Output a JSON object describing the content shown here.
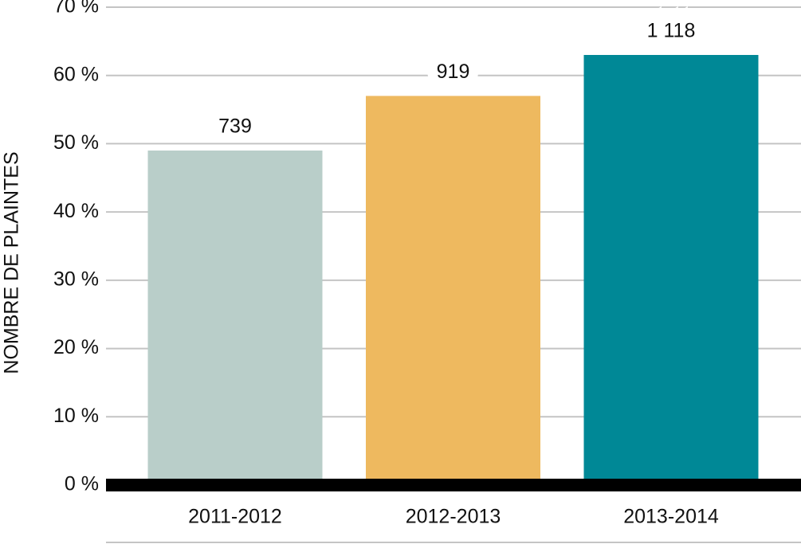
{
  "chart_data": {
    "type": "bar",
    "y_label": "NOMBRE DE PLAINTES",
    "categories": [
      "2011-2012",
      "2012-2013",
      "2013-2014"
    ],
    "values": [
      49,
      57,
      63
    ],
    "bar_labels": [
      "739",
      "919",
      "1 118"
    ],
    "colors": [
      "#b9cec9",
      "#eeb95f",
      "#008896"
    ],
    "ylim": [
      0,
      70
    ],
    "yticks": [
      {
        "value": 0,
        "label": "0 %"
      },
      {
        "value": 10,
        "label": "10 %"
      },
      {
        "value": 20,
        "label": "20 %"
      },
      {
        "value": 30,
        "label": "30 %"
      },
      {
        "value": 40,
        "label": "40 %"
      },
      {
        "value": 50,
        "label": "50 %"
      },
      {
        "value": 60,
        "label": "60 %"
      },
      {
        "value": 70,
        "label": "70 %"
      }
    ],
    "grid": true
  }
}
